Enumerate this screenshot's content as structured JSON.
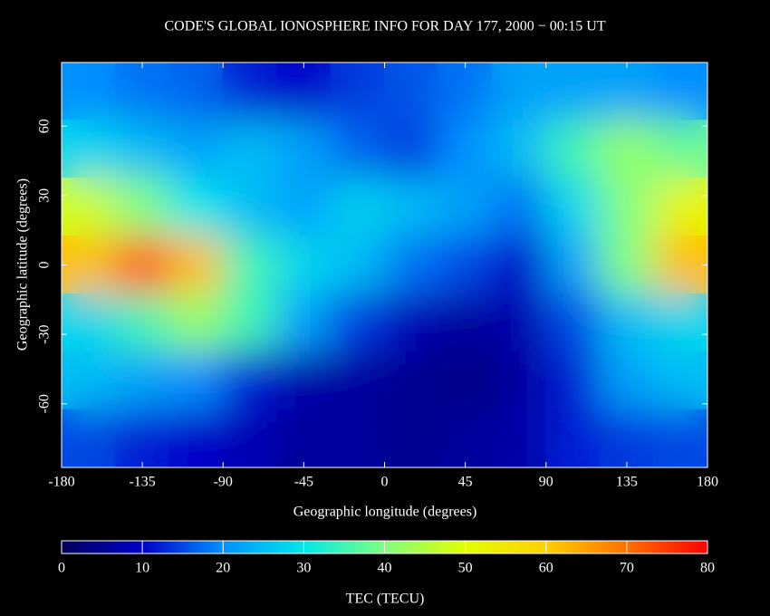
{
  "chart_data": {
    "type": "heatmap",
    "title": "CODE'S GLOBAL IONOSPHERE INFO FOR DAY 177, 2000 − 00:15 UT",
    "x_label": "Geographic longitude (degrees)",
    "y_label": "Geographic latitude (degrees)",
    "colorbar_label": "TEC (TECU)",
    "xlim": [
      -180,
      180
    ],
    "ylim": [
      -87.5,
      87.5
    ],
    "xticks": [
      -180,
      -135,
      -90,
      -45,
      0,
      45,
      90,
      135,
      180
    ],
    "yticks": [
      -60,
      -30,
      0,
      30,
      60
    ],
    "clim": [
      0,
      80
    ],
    "cticks": [
      0,
      10,
      20,
      30,
      40,
      50,
      60,
      70,
      80
    ],
    "colormap": [
      "#00005a",
      "#0000c8",
      "#0090ff",
      "#00e8e8",
      "#80ff80",
      "#e0ff00",
      "#ffd000",
      "#ff7000",
      "#ff0000"
    ],
    "lon_centers": [
      -165,
      -135,
      -105,
      -75,
      -45,
      -15,
      15,
      45,
      75,
      105,
      135,
      165
    ],
    "lat_centers": [
      75,
      50,
      25,
      0,
      -25,
      -50,
      -75
    ],
    "values": [
      [
        20,
        18,
        17,
        12,
        10,
        14,
        16,
        18,
        22,
        22,
        22,
        20
      ],
      [
        28,
        25,
        22,
        25,
        22,
        17,
        14,
        20,
        25,
        35,
        42,
        38
      ],
      [
        48,
        40,
        30,
        25,
        22,
        27,
        25,
        22,
        18,
        28,
        40,
        52
      ],
      [
        62,
        72,
        62,
        35,
        28,
        25,
        18,
        15,
        10,
        22,
        40,
        62
      ],
      [
        28,
        35,
        42,
        35,
        22,
        14,
        8,
        6,
        7,
        15,
        25,
        28
      ],
      [
        25,
        22,
        20,
        12,
        7,
        6,
        5,
        4,
        6,
        12,
        22,
        25
      ],
      [
        15,
        12,
        10,
        8,
        6,
        6,
        5,
        6,
        7,
        12,
        14,
        15
      ]
    ]
  }
}
